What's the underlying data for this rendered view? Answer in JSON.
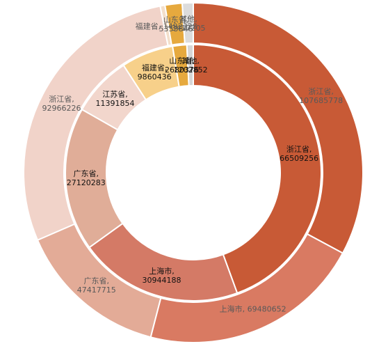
{
  "chart_data": {
    "type": "nested-donut",
    "rings": [
      {
        "values": [
          107685778,
          69480652,
          47417715,
          92966226,
          1492328,
          5353846,
          3417205
        ],
        "value_labels": [
          "浙江省,\n107685778",
          "上海市, 69480652",
          "广东省,\n47417715",
          "浙江省,\n92966226",
          "福建省, 1492328",
          "山东省,\n5353846",
          "其他,\n3417205"
        ],
        "colors": [
          "#c85a36",
          "#d97a62",
          "#e3ab97",
          "#f1d3c9",
          "#f3dfcb",
          "#e6a93e",
          "#dcdcdc"
        ]
      },
      {
        "values": [
          66509256,
          30944188,
          27120283,
          11391854,
          9860436,
          2680376,
          1202852
        ],
        "value_labels": [
          "浙江省,\n66509256",
          "上海市,\n30944188",
          "广东省,\n27120283",
          "江苏省,\n11391854",
          "福建省,\n9860436",
          "山东省,\n2680376",
          "其他,\n1202852"
        ],
        "colors": [
          "#c85a36",
          "#d47a66",
          "#e0ad98",
          "#f2d6cc",
          "#f7d08a",
          "#e6a93e",
          "#d6d6d6"
        ]
      }
    ]
  }
}
